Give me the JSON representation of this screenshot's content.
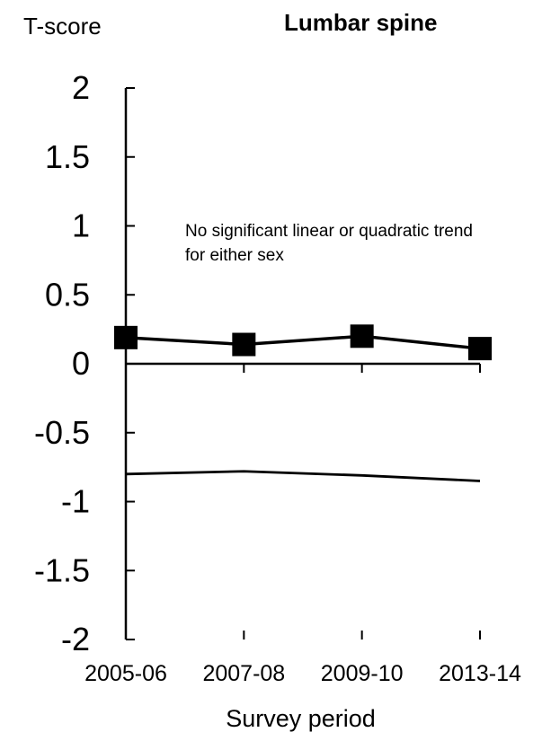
{
  "chart_data": {
    "type": "line",
    "title": "Lumbar spine",
    "ylabel": "T-score",
    "xlabel": "Survey period",
    "categories": [
      "2005-06",
      "2007-08",
      "2009-10",
      "2013-14"
    ],
    "ylim": [
      -2,
      2
    ],
    "yticks": [
      "2",
      "1.5",
      "1",
      "0.5",
      "0",
      "-0.5",
      "-1",
      "-1.5",
      "-2"
    ],
    "ytick_values": [
      2,
      1.5,
      1,
      0.5,
      0,
      -0.5,
      -1,
      -1.5,
      -2
    ],
    "series": [
      {
        "values": [
          0.19,
          0.14,
          0.2,
          0.11
        ],
        "marker": "square",
        "color": "#000000"
      },
      {
        "values": [
          -0.8,
          -0.78,
          -0.81,
          -0.85
        ],
        "marker": "none",
        "color": "#000000"
      }
    ],
    "annotation": [
      "No significant linear or quadratic trend",
      "for either sex"
    ],
    "grid": false
  }
}
